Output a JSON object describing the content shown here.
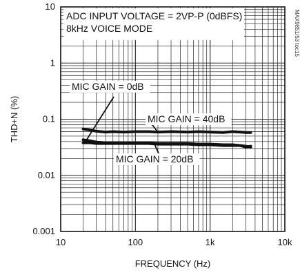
{
  "chart_data": {
    "type": "line",
    "xlabel": "FREQUENCY (Hz)",
    "ylabel": "THD+N (%)",
    "x_scale": "log",
    "y_scale": "log",
    "xlim": [
      10,
      10000
    ],
    "ylim": [
      0.001,
      10
    ],
    "grid": true,
    "x_ticks": [
      {
        "value": 10,
        "label": "10"
      },
      {
        "value": 100,
        "label": "100"
      },
      {
        "value": 1000,
        "label": "1k"
      },
      {
        "value": 10000,
        "label": "10k"
      }
    ],
    "y_ticks": [
      {
        "value": 10,
        "label": "10"
      },
      {
        "value": 1,
        "label": "1"
      },
      {
        "value": 0.1,
        "label": "0.1"
      },
      {
        "value": 0.01,
        "label": "0.01"
      },
      {
        "value": 0.001,
        "label": "0.001"
      }
    ],
    "conditions": [
      "ADC INPUT VOLTAGE = 2VP-P (0dBFS)",
      "8kHz VOICE MODE"
    ],
    "figure_code": "MAX9851/53 toc15",
    "series": [
      {
        "label": "MIC GAIN = 40dB",
        "color": "#111111",
        "x": [
          20,
          25,
          30,
          40,
          50,
          70,
          100,
          150,
          200,
          300,
          500,
          700,
          1000,
          1500,
          2000,
          2500,
          3000,
          3500
        ],
        "y": [
          0.067,
          0.064,
          0.061,
          0.059,
          0.06,
          0.059,
          0.06,
          0.06,
          0.059,
          0.06,
          0.059,
          0.06,
          0.059,
          0.058,
          0.06,
          0.059,
          0.058,
          0.058
        ]
      },
      {
        "label": "MIC GAIN = 20dB",
        "color": "#111111",
        "x": [
          20,
          25,
          30,
          40,
          50,
          70,
          100,
          150,
          200,
          300,
          500,
          700,
          1000,
          1500,
          2000,
          2500,
          3000,
          3500
        ],
        "y": [
          0.038,
          0.038,
          0.037,
          0.037,
          0.037,
          0.037,
          0.037,
          0.037,
          0.036,
          0.036,
          0.036,
          0.035,
          0.035,
          0.034,
          0.034,
          0.034,
          0.032,
          0.033
        ]
      },
      {
        "label": "MIC GAIN = 0dB",
        "color": "#111111",
        "x": [
          20,
          25,
          30,
          40,
          50,
          70,
          100,
          150,
          200,
          300,
          500,
          700,
          1000,
          1500,
          2000,
          2500,
          3000,
          3500
        ],
        "y": [
          0.043,
          0.041,
          0.039,
          0.038,
          0.038,
          0.038,
          0.038,
          0.038,
          0.037,
          0.037,
          0.037,
          0.036,
          0.036,
          0.035,
          0.035,
          0.034,
          0.033,
          0.032
        ]
      }
    ],
    "annotations": [
      {
        "text": "MIC GAIN = 0dB",
        "series": 2
      },
      {
        "text": "MIC GAIN = 40dB",
        "series": 0
      },
      {
        "text": "MIC GAIN = 20dB",
        "series": 1
      }
    ]
  }
}
